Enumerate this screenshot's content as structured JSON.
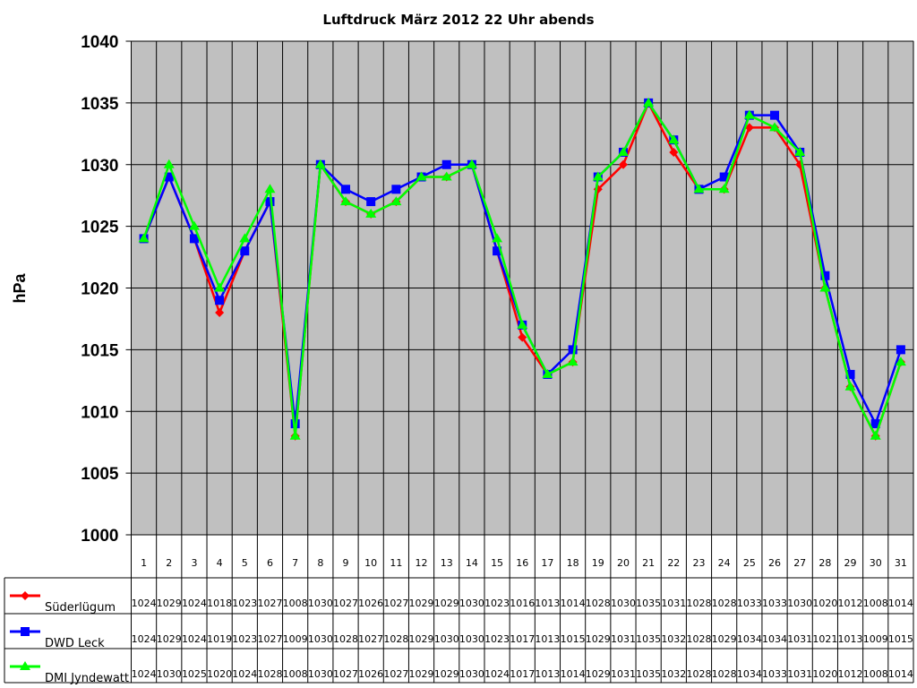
{
  "chart_data": {
    "type": "line",
    "title": "Luftdruck März 2012 22 Uhr abends",
    "xlabel": "",
    "ylabel": "hPa",
    "ylim": [
      1000,
      1040
    ],
    "yticks": [
      1000,
      1005,
      1010,
      1015,
      1020,
      1025,
      1030,
      1035,
      1040
    ],
    "grid": true,
    "plot_background": "#c0c0c0",
    "legend": "bottom-left data table",
    "categories": [
      "1",
      "2",
      "3",
      "4",
      "5",
      "6",
      "7",
      "8",
      "9",
      "10",
      "11",
      "12",
      "13",
      "14",
      "15",
      "16",
      "17",
      "18",
      "19",
      "20",
      "21",
      "22",
      "23",
      "24",
      "25",
      "26",
      "27",
      "28",
      "29",
      "30",
      "31"
    ],
    "series": [
      {
        "name": "Süderlügum",
        "color": "#ff0000",
        "marker": "diamond",
        "values": [
          1024,
          1029,
          1024,
          1018,
          1023,
          1027,
          1008,
          1030,
          1027,
          1026,
          1027,
          1029,
          1029,
          1030,
          1023,
          1016,
          1013,
          1014,
          1028,
          1030,
          1035,
          1031,
          1028,
          1028,
          1033,
          1033,
          1030,
          1020,
          1012,
          1008,
          1014
        ]
      },
      {
        "name": "DWD Leck",
        "color": "#0000ff",
        "marker": "square",
        "values": [
          1024,
          1029,
          1024,
          1019,
          1023,
          1027,
          1009,
          1030,
          1028,
          1027,
          1028,
          1029,
          1030,
          1030,
          1023,
          1017,
          1013,
          1015,
          1029,
          1031,
          1035,
          1032,
          1028,
          1029,
          1034,
          1034,
          1031,
          1021,
          1013,
          1009,
          1015
        ]
      },
      {
        "name": "DMI Jyndewatt",
        "color": "#00ff00",
        "marker": "triangle",
        "values": [
          1024,
          1030,
          1025,
          1020,
          1024,
          1028,
          1008,
          1030,
          1027,
          1026,
          1027,
          1029,
          1029,
          1030,
          1024,
          1017,
          1013,
          1014,
          1029,
          1031,
          1035,
          1032,
          1028,
          1028,
          1034,
          1033,
          1031,
          1020,
          1012,
          1008,
          1014
        ]
      }
    ]
  }
}
